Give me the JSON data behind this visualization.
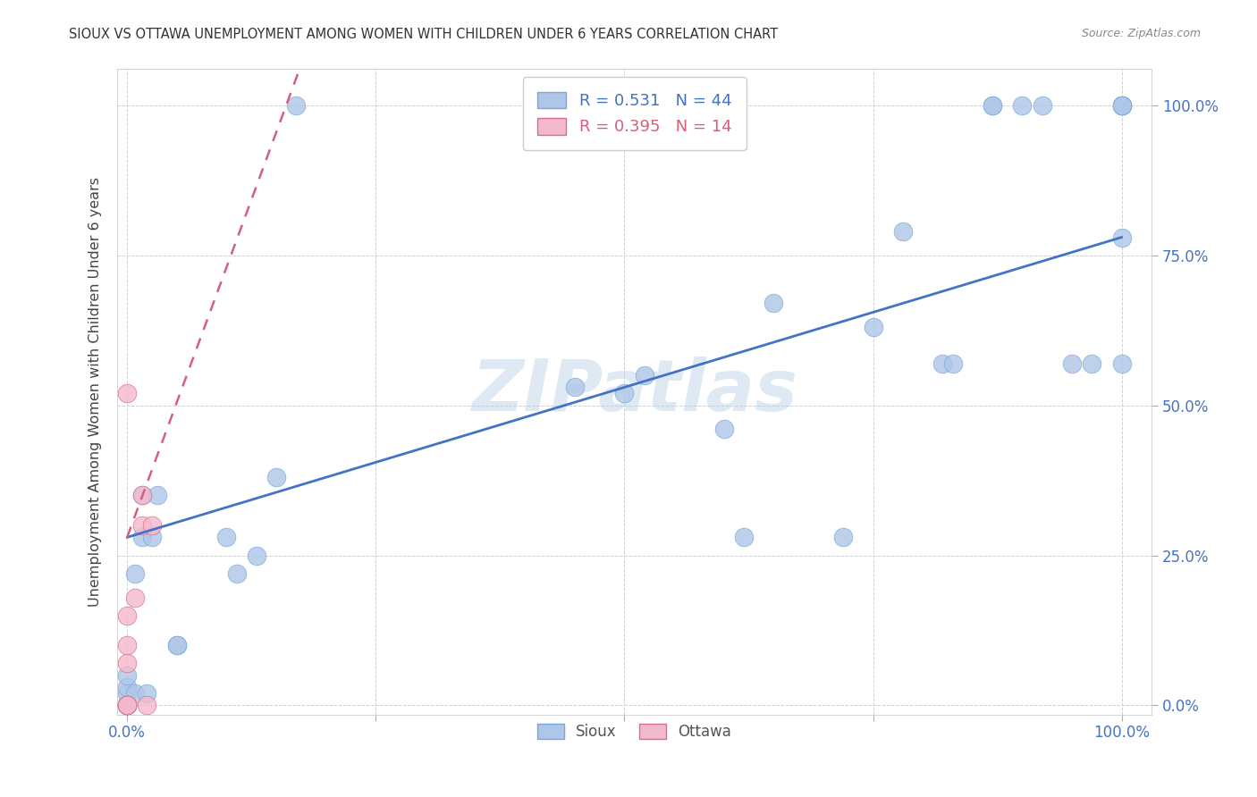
{
  "title": "SIOUX VS OTTAWA UNEMPLOYMENT AMONG WOMEN WITH CHILDREN UNDER 6 YEARS CORRELATION CHART",
  "source": "Source: ZipAtlas.com",
  "ylabel": "Unemployment Among Women with Children Under 6 years",
  "sioux_R": 0.531,
  "sioux_N": 44,
  "ottawa_R": 0.395,
  "ottawa_N": 14,
  "sioux_color": "#aec6e8",
  "sioux_edge_color": "#7aa8d4",
  "sioux_line_color": "#4472c4",
  "ottawa_color": "#f4b8cc",
  "ottawa_edge_color": "#d4708a",
  "ottawa_line_color": "#d4607a",
  "watermark": "ZIPatlas",
  "bg_color": "#ffffff",
  "grid_color": "#d0d0d0",
  "sioux_x": [
    0.0,
    0.0,
    0.0,
    0.0,
    0.0,
    0.0,
    0.0,
    0.008,
    0.008,
    0.015,
    0.015,
    0.02,
    0.025,
    0.03,
    0.05,
    0.05,
    0.1,
    0.11,
    0.13,
    0.15,
    0.17,
    0.45,
    0.5,
    0.52,
    0.6,
    0.62,
    0.65,
    0.72,
    0.75,
    0.78,
    0.82,
    0.83,
    0.87,
    0.87,
    0.9,
    0.92,
    0.95,
    0.97,
    1.0,
    1.0,
    1.0,
    1.0,
    1.0,
    1.0
  ],
  "sioux_y": [
    0.0,
    0.0,
    0.0,
    0.0,
    0.02,
    0.03,
    0.05,
    0.02,
    0.22,
    0.28,
    0.35,
    0.02,
    0.28,
    0.35,
    0.1,
    0.1,
    0.28,
    0.22,
    0.25,
    0.38,
    1.0,
    0.53,
    0.52,
    0.55,
    0.46,
    0.28,
    0.67,
    0.28,
    0.63,
    0.79,
    0.57,
    0.57,
    1.0,
    1.0,
    1.0,
    1.0,
    0.57,
    0.57,
    0.57,
    1.0,
    1.0,
    1.0,
    1.0,
    0.78
  ],
  "ottawa_x": [
    0.0,
    0.0,
    0.0,
    0.0,
    0.0,
    0.0,
    0.0,
    0.0,
    0.0,
    0.008,
    0.015,
    0.015,
    0.02,
    0.025
  ],
  "ottawa_y": [
    0.0,
    0.0,
    0.0,
    0.0,
    0.0,
    0.07,
    0.1,
    0.15,
    0.52,
    0.18,
    0.3,
    0.35,
    0.0,
    0.3
  ],
  "ytick_right": true,
  "ytick_labels": [
    "0.0%",
    "25.0%",
    "50.0%",
    "75.0%",
    "100.0%"
  ],
  "ytick_values": [
    0.0,
    0.25,
    0.5,
    0.75,
    1.0
  ],
  "xtick_labels": [
    "0.0%",
    "",
    "",
    "",
    "100.0%"
  ],
  "xtick_values": [
    0.0,
    0.25,
    0.5,
    0.75,
    1.0
  ]
}
